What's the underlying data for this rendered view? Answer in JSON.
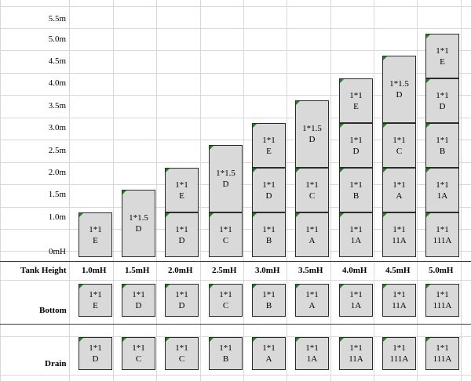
{
  "y_axis": [
    "0mH",
    "1.0m",
    "1.5m",
    "2.0m",
    "2.5m",
    "3.0m",
    "3.5m",
    "4.0m",
    "4.5m",
    "5.0m",
    "5.5m"
  ],
  "header_label": "Tank Height",
  "tank_heights": [
    "1.0mH",
    "1.5mH",
    "2.0mH",
    "2.5mH",
    "3.0mH",
    "3.5mH",
    "4.0mH",
    "4.5mH",
    "5.0mH"
  ],
  "tanks": [
    {
      "height": "1.0mH",
      "blocks": [
        {
          "size": "1*1",
          "code": "E"
        }
      ],
      "bottom": {
        "size": "1*1",
        "code": "E"
      },
      "drain": {
        "size": "1*1",
        "code": "D"
      }
    },
    {
      "height": "1.5mH",
      "blocks": [
        {
          "size": "1*1.5",
          "code": "D"
        }
      ],
      "bottom": {
        "size": "1*1",
        "code": "D"
      },
      "drain": {
        "size": "1*1",
        "code": "C"
      }
    },
    {
      "height": "2.0mH",
      "blocks": [
        {
          "size": "1*1",
          "code": "D"
        },
        {
          "size": "1*1",
          "code": "E"
        }
      ],
      "bottom": {
        "size": "1*1",
        "code": "D"
      },
      "drain": {
        "size": "1*1",
        "code": "C"
      }
    },
    {
      "height": "2.5mH",
      "blocks": [
        {
          "size": "1*1",
          "code": "C"
        },
        {
          "size": "1*1.5",
          "code": "D"
        }
      ],
      "bottom": {
        "size": "1*1",
        "code": "C"
      },
      "drain": {
        "size": "1*1",
        "code": "B"
      }
    },
    {
      "height": "3.0mH",
      "blocks": [
        {
          "size": "1*1",
          "code": "B"
        },
        {
          "size": "1*1",
          "code": "D"
        },
        {
          "size": "1*1",
          "code": "E"
        }
      ],
      "bottom": {
        "size": "1*1",
        "code": "B"
      },
      "drain": {
        "size": "1*1",
        "code": "A"
      }
    },
    {
      "height": "3.5mH",
      "blocks": [
        {
          "size": "1*1",
          "code": "A"
        },
        {
          "size": "1*1",
          "code": "C"
        },
        {
          "size": "1*1.5",
          "code": "D"
        }
      ],
      "bottom": {
        "size": "1*1",
        "code": "A"
      },
      "drain": {
        "size": "1*1",
        "code": "1A"
      }
    },
    {
      "height": "4.0mH",
      "blocks": [
        {
          "size": "1*1",
          "code": "1A"
        },
        {
          "size": "1*1",
          "code": "B"
        },
        {
          "size": "1*1",
          "code": "D"
        },
        {
          "size": "1*1",
          "code": "E"
        }
      ],
      "bottom": {
        "size": "1*1",
        "code": "1A"
      },
      "drain": {
        "size": "1*1",
        "code": "11A"
      }
    },
    {
      "height": "4.5mH",
      "blocks": [
        {
          "size": "1*1",
          "code": "11A"
        },
        {
          "size": "1*1",
          "code": "A"
        },
        {
          "size": "1*1",
          "code": "C"
        },
        {
          "size": "1*1.5",
          "code": "D"
        }
      ],
      "bottom": {
        "size": "1*1",
        "code": "11A"
      },
      "drain": {
        "size": "1*1",
        "code": "111A"
      }
    },
    {
      "height": "5.0mH",
      "blocks": [
        {
          "size": "1*1",
          "code": "111A"
        },
        {
          "size": "1*1",
          "code": "1A"
        },
        {
          "size": "1*1",
          "code": "B"
        },
        {
          "size": "1*1",
          "code": "D"
        },
        {
          "size": "1*1",
          "code": "E"
        }
      ],
      "bottom": {
        "size": "1*1",
        "code": "111A"
      },
      "drain": {
        "size": "1*1",
        "code": "111A"
      }
    }
  ],
  "bottom_label": "Bottom",
  "drain_label": "Drain",
  "colors": {
    "cell_fill": "#d9d9d9",
    "cell_border": "#2b2b2b",
    "corner_marker": "#1a8a1a",
    "gridline": "#d8d8d8"
  }
}
